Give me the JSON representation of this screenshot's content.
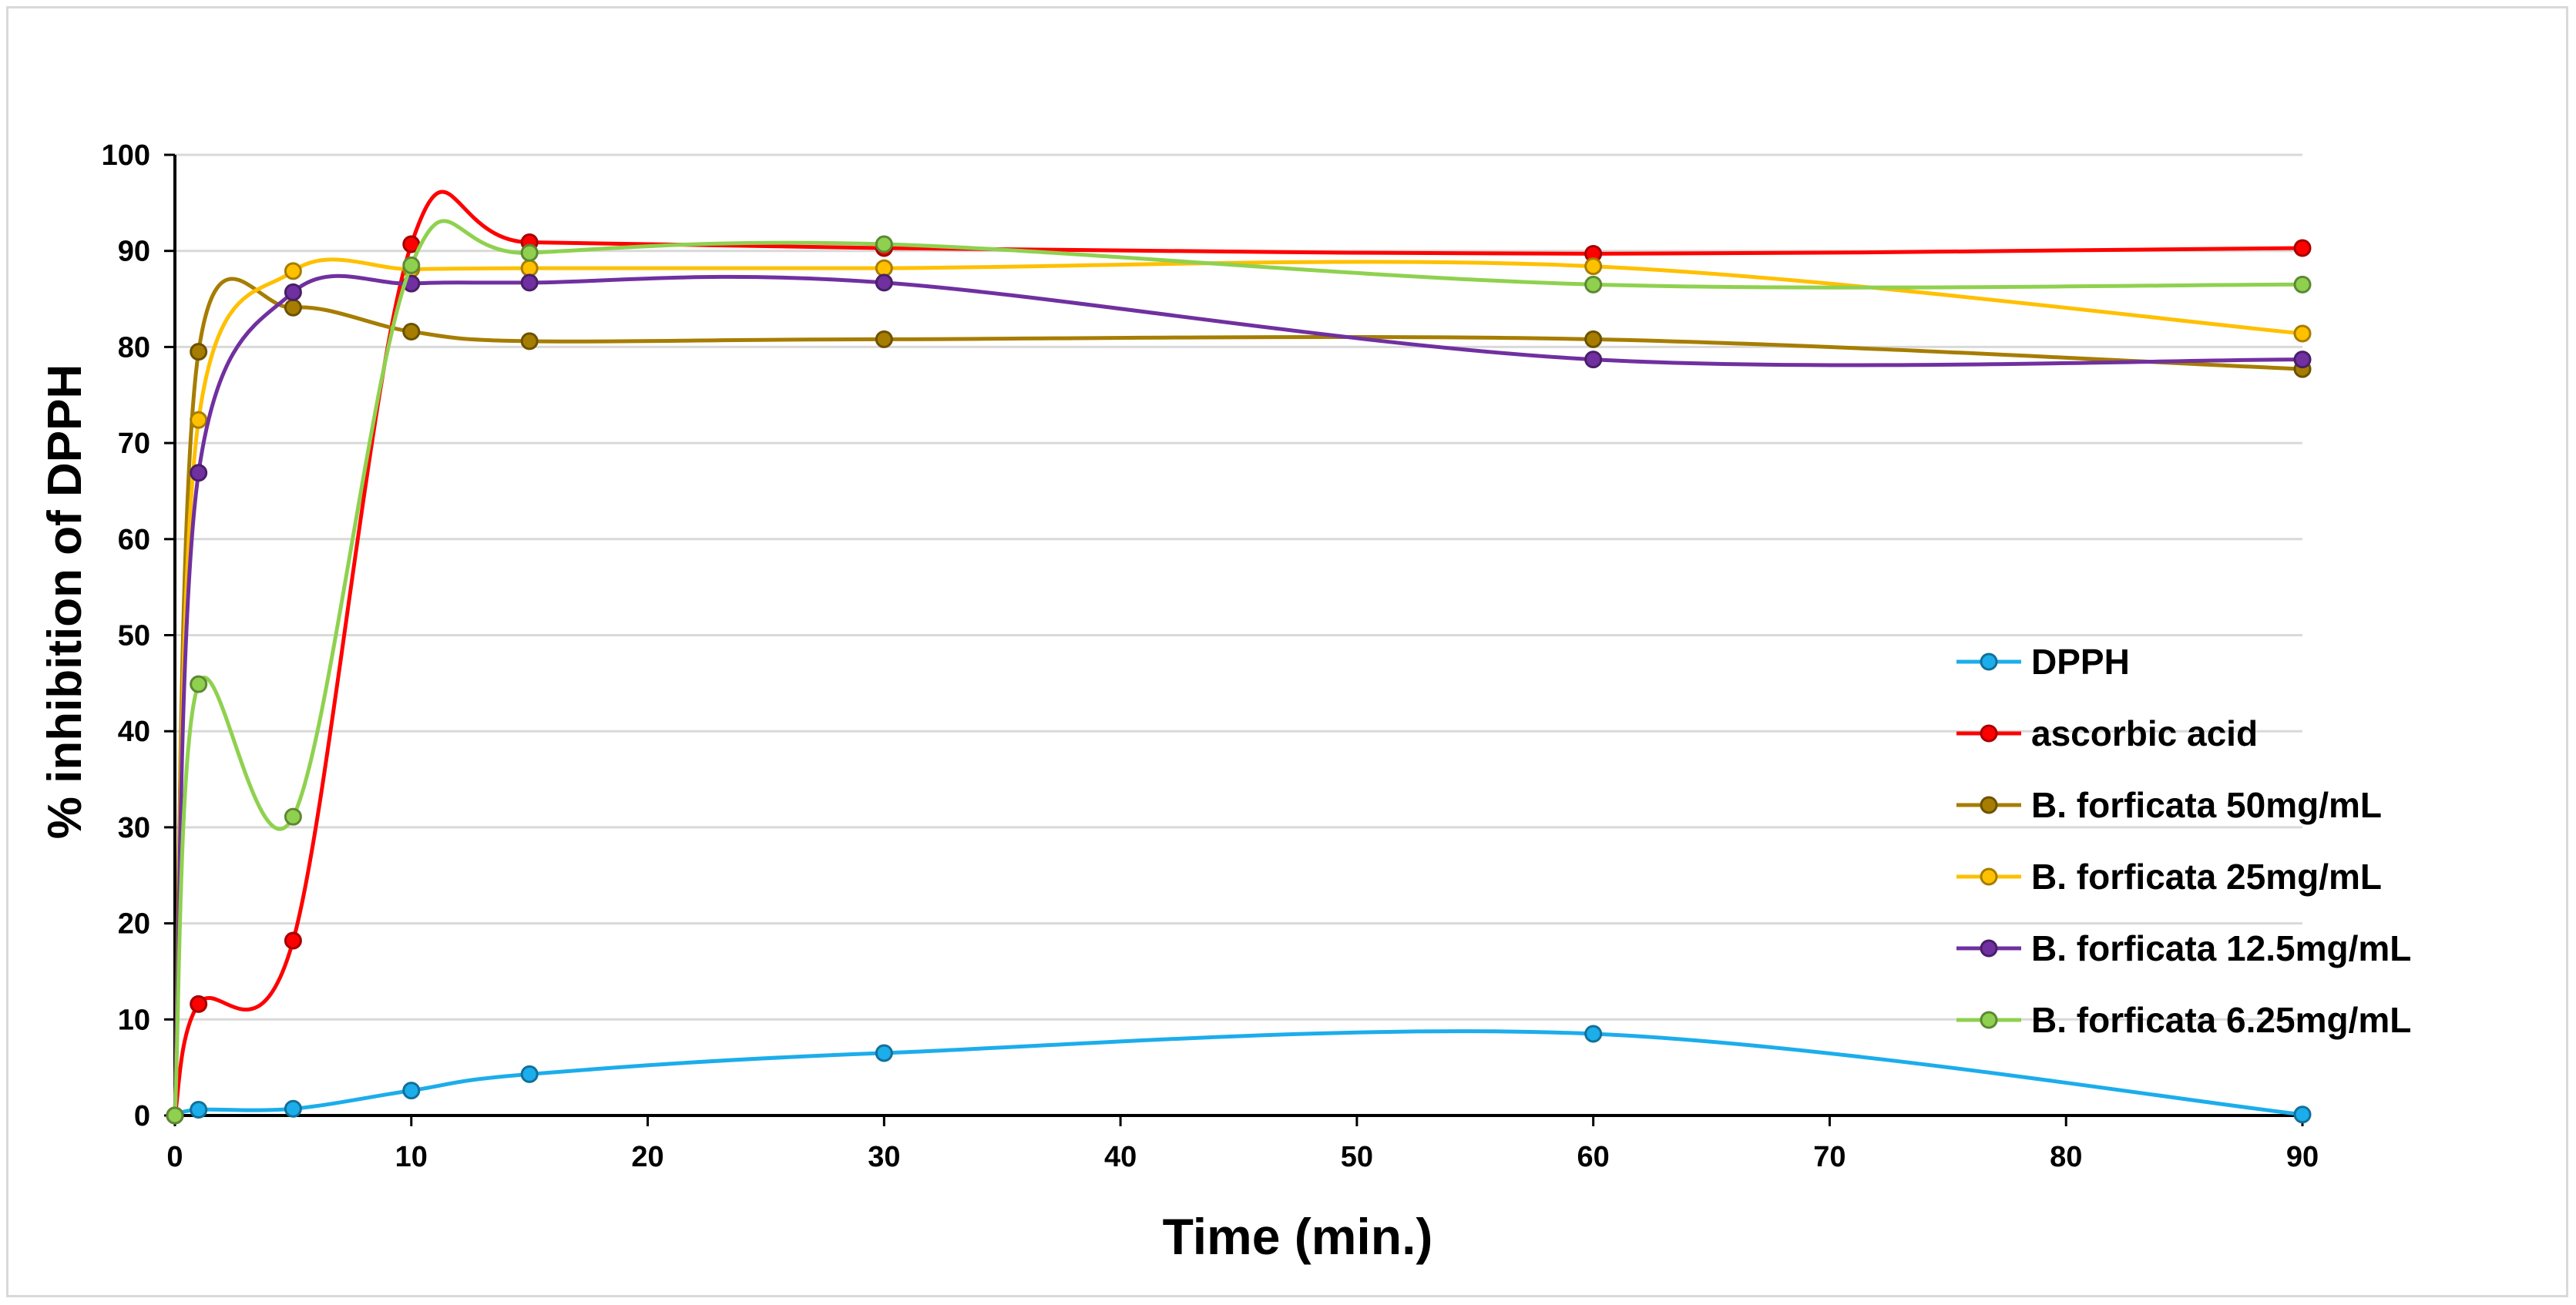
{
  "chart_data": {
    "type": "line",
    "smooth": true,
    "title": "",
    "xlabel": "Time (min.)",
    "ylabel": "% inhibition of DPPH",
    "xlim": [
      0,
      90
    ],
    "ylim": [
      0,
      100
    ],
    "xticks": [
      0,
      10,
      20,
      30,
      40,
      50,
      60,
      70,
      80,
      90
    ],
    "yticks": [
      0,
      10,
      20,
      30,
      40,
      50,
      60,
      70,
      80,
      90,
      100
    ],
    "grid": "horizontal",
    "legend_position": "right",
    "x": [
      0,
      1,
      5,
      10,
      15,
      30,
      60,
      90
    ],
    "series": [
      {
        "name": "DPPH",
        "color": "#1cadeb",
        "values": [
          0,
          0.6,
          0.7,
          2.6,
          4.3,
          6.5,
          8.5,
          0.1
        ]
      },
      {
        "name": "ascorbic acid",
        "color": "#ff0000",
        "values": [
          0,
          11.6,
          18.2,
          90.7,
          90.9,
          90.3,
          89.7,
          90.3
        ]
      },
      {
        "name": "B. forficata 50mg/mL",
        "color": "#a67d00",
        "values": [
          0,
          79.5,
          84.1,
          81.6,
          80.6,
          80.8,
          80.8,
          77.7
        ]
      },
      {
        "name": "B. forficata 25mg/mL",
        "color": "#ffc000",
        "values": [
          0,
          72.4,
          87.9,
          88.1,
          88.2,
          88.2,
          88.4,
          81.4
        ]
      },
      {
        "name": "B. forficata 12.5mg/mL",
        "color": "#7030a0",
        "values": [
          0,
          66.9,
          85.7,
          86.6,
          86.7,
          86.7,
          78.7,
          78.7
        ]
      },
      {
        "name": "B. forficata 6.25mg/mL",
        "color": "#8fd14f",
        "values": [
          0,
          44.9,
          31.1,
          88.5,
          89.8,
          90.7,
          86.5,
          86.5
        ]
      }
    ]
  }
}
